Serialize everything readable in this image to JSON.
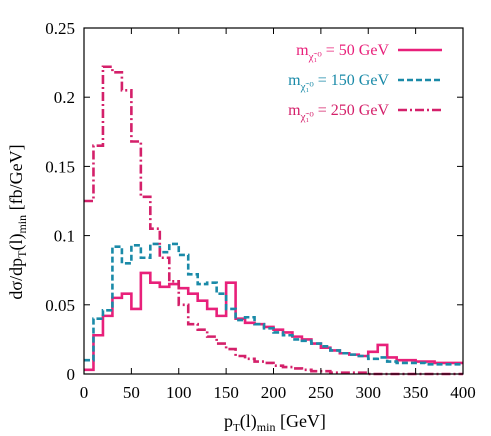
{
  "chart_data": {
    "type": "line",
    "step": true,
    "title": "",
    "xlabel": {
      "main": "p",
      "sub1": "T",
      "mid": "(l)",
      "sub2": "min",
      "unit": " [GeV]"
    },
    "ylabel": {
      "pre": "dσ/dp",
      "sub1": "T",
      "mid": "(l)",
      "sub2": "min",
      "unit": " [fb/GeV]"
    },
    "xlim": [
      0,
      400
    ],
    "ylim": [
      0,
      0.25
    ],
    "xticks": [
      "0",
      "50",
      "100",
      "150",
      "200",
      "250",
      "300",
      "350",
      "400"
    ],
    "yticks": [
      "0",
      "0.05",
      "0.1",
      "0.15",
      "0.2",
      "0.25"
    ],
    "xtick_values": [
      0,
      50,
      100,
      150,
      200,
      250,
      300,
      350,
      400
    ],
    "ytick_values": [
      0,
      0.05,
      0.1,
      0.15,
      0.2,
      0.25
    ],
    "bin_width": 10,
    "grid": false,
    "legend_position": "top-right",
    "series": [
      {
        "name_pre": "m",
        "name_sub": "χ̃₁⁰",
        "name_post": " = 50 GeV",
        "color": "#e8207a",
        "dash": "solid",
        "x_start": 0,
        "values": [
          0.003,
          0.028,
          0.042,
          0.055,
          0.058,
          0.047,
          0.073,
          0.066,
          0.063,
          0.065,
          0.062,
          0.058,
          0.053,
          0.047,
          0.042,
          0.066,
          0.04,
          0.037,
          0.036,
          0.034,
          0.032,
          0.03,
          0.027,
          0.025,
          0.022,
          0.019,
          0.017,
          0.015,
          0.014,
          0.013,
          0.016,
          0.021,
          0.012,
          0.01,
          0.01,
          0.009,
          0.009,
          0.008,
          0.008,
          0.008
        ]
      },
      {
        "name_pre": "m",
        "name_sub": "χ̃₁⁰",
        "name_post": " = 150 GeV",
        "color": "#1a8aa8",
        "dash": "dashed",
        "x_start": 0,
        "values": [
          0.01,
          0.04,
          0.046,
          0.092,
          0.08,
          0.093,
          0.084,
          0.094,
          0.088,
          0.094,
          0.086,
          0.072,
          0.065,
          0.066,
          0.058,
          0.047,
          0.039,
          0.041,
          0.036,
          0.033,
          0.03,
          0.028,
          0.025,
          0.024,
          0.022,
          0.02,
          0.017,
          0.015,
          0.014,
          0.013,
          0.011,
          0.012,
          0.009,
          0.008,
          0.008,
          0.008,
          0.007,
          0.007,
          0.007,
          0.007
        ]
      },
      {
        "name_pre": "m",
        "name_sub": "χ̃₁⁰",
        "name_post": " = 250 GeV",
        "color": "#d4206a",
        "dash": "dashdot",
        "x_start": 0,
        "values": [
          0.125,
          0.165,
          0.222,
          0.218,
          0.205,
          0.168,
          0.128,
          0.105,
          0.084,
          0.067,
          0.05,
          0.036,
          0.032,
          0.027,
          0.022,
          0.018,
          0.013,
          0.011,
          0.009,
          0.008,
          0.006,
          0.005,
          0.004,
          0.003,
          0.002,
          0.002,
          0.001,
          0.001,
          0.001,
          0.001,
          0.0,
          0.0,
          0.0,
          0.0,
          0.0,
          0.0,
          0.0,
          0.0,
          0.0,
          0.0
        ]
      }
    ]
  }
}
